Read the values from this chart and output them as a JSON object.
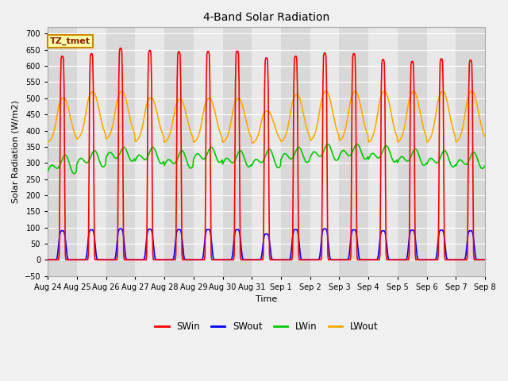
{
  "title": "4-Band Solar Radiation",
  "ylabel": "Solar Radiation (W/m2)",
  "xlabel": "Time",
  "annotation": "TZ_tmet",
  "ylim": [
    -50,
    720
  ],
  "n_days": 15,
  "colors": {
    "SWin": "#ff0000",
    "SWout": "#0000ff",
    "LWin": "#00cc00",
    "LWout": "#ffaa00"
  },
  "tick_labels": [
    "Aug 24",
    "Aug 25",
    "Aug 26",
    "Aug 27",
    "Aug 28",
    "Aug 29",
    "Aug 30",
    "Aug 31",
    "Sep 1",
    "Sep 2",
    "Sep 3",
    "Sep 4",
    "Sep 5",
    "Sep 6",
    "Sep 7",
    "Sep 8"
  ],
  "legend_labels": [
    "SWin",
    "SWout",
    "LWin",
    "LWout"
  ]
}
